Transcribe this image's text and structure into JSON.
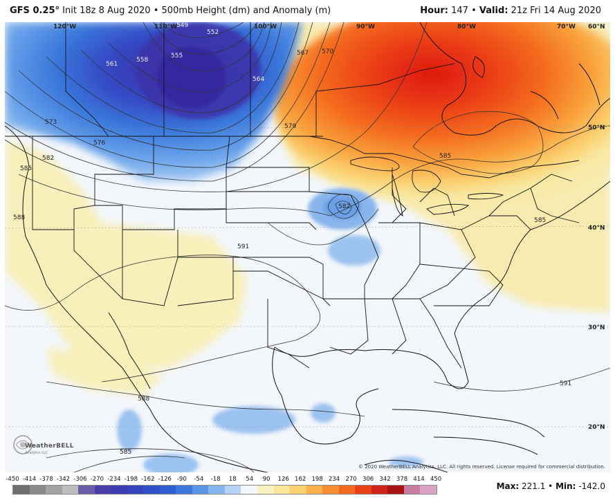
{
  "header": {
    "model": "GFS 0.25°",
    "init": "Init 18z 8 Aug 2020",
    "field": "500mb Height (dm) and Anomaly (m)",
    "hour_label": "Hour:",
    "hour": "147",
    "valid_label": "Valid:",
    "valid": "21z Fri 14 Aug 2020"
  },
  "longitudes": [
    "120°W",
    "110°W",
    "100°W",
    "90°W",
    "80°W",
    "70°W"
  ],
  "latitudes": [
    "60°N",
    "50°N",
    "40°N",
    "30°N",
    "20°N"
  ],
  "contour_labels": [
    "549",
    "552",
    "555",
    "558",
    "561",
    "564",
    "567",
    "570",
    "573",
    "576",
    "579",
    "582",
    "585",
    "585",
    "585",
    "588",
    "588",
    "591",
    "591",
    "582",
    "585"
  ],
  "copyright": "© 2020 WeatherBELL Analytics, LLC. All rights reserved. License required for commercial distribution.",
  "logo": {
    "name": "WeatherBELL",
    "sub": "Analytics LLC"
  },
  "colorbar": {
    "ticks": [
      "-450",
      "-414",
      "-378",
      "-342",
      "-306",
      "-270",
      "-234",
      "-198",
      "-162",
      "-126",
      "-90",
      "-54",
      "-18",
      "18",
      "54",
      "90",
      "126",
      "162",
      "198",
      "234",
      "270",
      "306",
      "342",
      "378",
      "414",
      "450"
    ],
    "colors": [
      "#6e6e6e",
      "#8a8a8a",
      "#a3a3a3",
      "#bdbdbd",
      "#6b5ca8",
      "#4a3fa8",
      "#3b3ab0",
      "#3545c0",
      "#3050c8",
      "#2f5fd0",
      "#3a78dc",
      "#5a95e6",
      "#86b6ee",
      "#b5d3f5",
      "#f3f6fb",
      "#f8f3c0",
      "#fae69a",
      "#fbd070",
      "#f9b24a",
      "#f78f32",
      "#f26a20",
      "#e8411a",
      "#cf2418",
      "#a81414",
      "#c87aa0",
      "#d7a4c4"
    ]
  },
  "stats": {
    "max_label": "Max:",
    "max": "221.1",
    "min_label": "Min:",
    "min": "-142.0"
  }
}
